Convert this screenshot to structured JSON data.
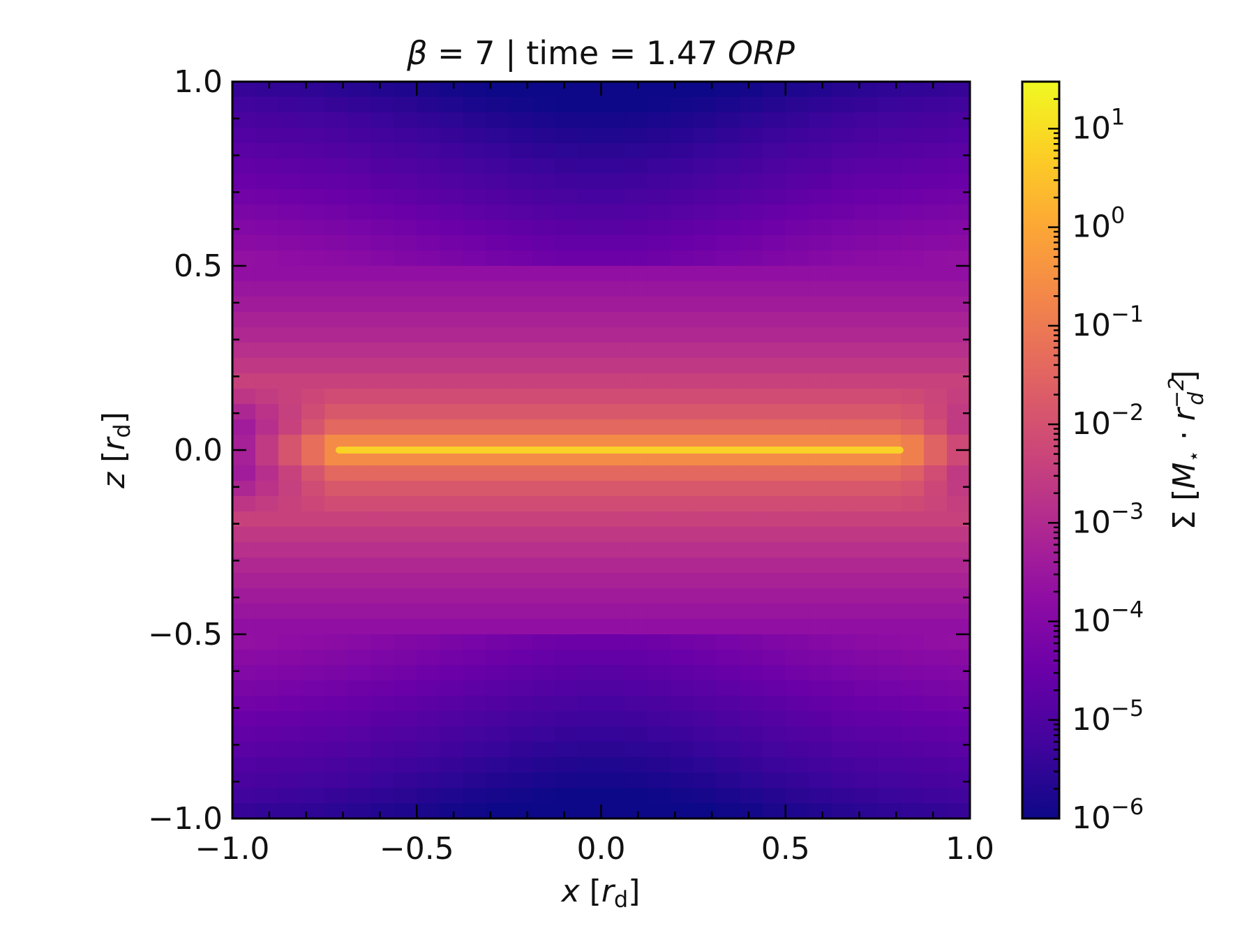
{
  "chart_data": {
    "type": "heatmap",
    "title": "β = 7 | time = 1.47 ORP",
    "title_parts": {
      "beta": "β",
      "rest": " = 7 | time = 1.47 ",
      "unit": "ORP"
    },
    "xlabel": "x [r_d]",
    "ylabel": "z [r_d]",
    "x_label_parts": {
      "var": "x",
      "open": " [",
      "r": "r",
      "sub": "d",
      "close": "]"
    },
    "y_label_parts": {
      "var": "z",
      "open": " [",
      "r": "r",
      "sub": "d",
      "close": "]"
    },
    "xlim": [
      -1.0,
      1.0
    ],
    "ylim": [
      -1.0,
      1.0
    ],
    "x_ticks": [
      -1.0,
      -0.5,
      0.0,
      0.5,
      1.0
    ],
    "x_tick_labels": [
      "−1.0",
      "−0.5",
      "0.0",
      "0.5",
      "1.0"
    ],
    "y_ticks": [
      -1.0,
      -0.5,
      0.0,
      0.5,
      1.0
    ],
    "y_tick_labels": [
      "−1.0",
      "−0.5",
      "0.0",
      "0.5",
      "1.0"
    ],
    "minor_tick_step": 0.1,
    "colormap": "plasma",
    "colorbar": {
      "scale": "log",
      "range": [
        1e-06,
        30
      ],
      "ticks": [
        -6,
        -5,
        -4,
        -3,
        -2,
        -1,
        0,
        1
      ],
      "tick_labels": [
        {
          "base": "10",
          "exp": "−6"
        },
        {
          "base": "10",
          "exp": "−5"
        },
        {
          "base": "10",
          "exp": "−4"
        },
        {
          "base": "10",
          "exp": "−3"
        },
        {
          "base": "10",
          "exp": "−2"
        },
        {
          "base": "10",
          "exp": "−1"
        },
        {
          "base": "10",
          "exp": "0"
        },
        {
          "base": "10",
          "exp": "1"
        }
      ],
      "label": "Σ [M⋆ · r_d⁻²]",
      "label_parts": {
        "sigma": "Σ [",
        "m": "M",
        "star": "⋆",
        "dot": " · ",
        "r": "r",
        "sub": "d",
        "sup": "−2",
        "close": "]"
      }
    },
    "density_profile_log10": {
      "z": [
        0.0,
        0.02,
        0.05,
        0.1,
        0.2,
        0.3,
        0.5,
        0.7,
        0.9,
        1.0
      ],
      "log10_sigma": [
        0.6,
        -0.6,
        -1.3,
        -1.8,
        -2.5,
        -3.0,
        -3.8,
        -4.6,
        -5.3,
        -5.7
      ]
    },
    "midplane_extent_x": [
      -0.72,
      0.82
    ]
  }
}
